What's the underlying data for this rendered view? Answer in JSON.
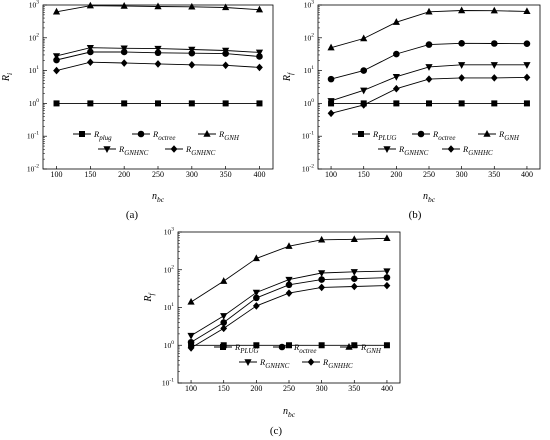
{
  "chart_data": [
    {
      "type": "line",
      "panel_label": "(a)",
      "xlabel_main": "n",
      "xlabel_sub": "bc",
      "ylabel_main": "R",
      "ylabel_sub": "i",
      "x": [
        100,
        150,
        200,
        250,
        300,
        350,
        400
      ],
      "xlim": [
        80,
        420
      ],
      "x_ticks": [
        "100",
        "150",
        "200",
        "250",
        "300",
        "350",
        "400"
      ],
      "y_scale": "log",
      "ylim_exp": [
        -2,
        3
      ],
      "y_ticks": [
        {
          "m": "10",
          "e": "-2"
        },
        {
          "m": "10",
          "e": "-1"
        },
        {
          "m": "10",
          "e": "0"
        },
        {
          "m": "10",
          "e": "1"
        },
        {
          "m": "10",
          "e": "2"
        },
        {
          "m": "10",
          "e": "3"
        }
      ],
      "grid": false,
      "legend_position": "bottom",
      "series": [
        {
          "main": "R",
          "sub": "plug",
          "marker": "square",
          "values": [
            1,
            1,
            1,
            1,
            1,
            1,
            1
          ]
        },
        {
          "main": "R",
          "sub": "octree",
          "marker": "circle",
          "values": [
            21,
            37,
            37,
            35,
            34,
            33,
            27
          ]
        },
        {
          "main": "R",
          "sub": "GNH",
          "marker": "triangle-up",
          "values": [
            620,
            950,
            930,
            900,
            880,
            840,
            720
          ]
        },
        {
          "main": "R",
          "sub": "GNHNC",
          "marker": "triangle-down",
          "values": [
            28,
            50,
            48,
            47,
            44,
            41,
            36
          ]
        },
        {
          "main": "R",
          "sub": "GNHNC",
          "marker": "diamond",
          "values": [
            10,
            18,
            17,
            16,
            15,
            14.5,
            12.5
          ]
        }
      ]
    },
    {
      "type": "line",
      "panel_label": "(b)",
      "xlabel_main": "n",
      "xlabel_sub": "bc",
      "ylabel_main": "R",
      "ylabel_sub": "f",
      "x": [
        100,
        150,
        200,
        250,
        300,
        350,
        400
      ],
      "xlim": [
        80,
        420
      ],
      "x_ticks": [
        "100",
        "150",
        "200",
        "250",
        "300",
        "350",
        "400"
      ],
      "y_scale": "log",
      "ylim_exp": [
        -2,
        3
      ],
      "y_ticks": [
        {
          "m": "10",
          "e": "-2"
        },
        {
          "m": "10",
          "e": "-1"
        },
        {
          "m": "10",
          "e": "0"
        },
        {
          "m": "10",
          "e": "1"
        },
        {
          "m": "10",
          "e": "2"
        },
        {
          "m": "10",
          "e": "3"
        }
      ],
      "grid": false,
      "legend_position": "bottom",
      "series": [
        {
          "main": "R",
          "sub": "PLUG",
          "marker": "square",
          "values": [
            1,
            1,
            1,
            1,
            1,
            1,
            1
          ]
        },
        {
          "main": "R",
          "sub": "octree",
          "marker": "circle",
          "values": [
            5.5,
            10,
            32,
            62,
            68,
            67,
            66
          ]
        },
        {
          "main": "R",
          "sub": "GNH",
          "marker": "triangle-up",
          "values": [
            50,
            95,
            300,
            620,
            680,
            670,
            640
          ]
        },
        {
          "main": "R",
          "sub": "GNHNC",
          "marker": "triangle-down",
          "values": [
            1.2,
            2.5,
            6.5,
            13,
            15,
            15,
            15
          ]
        },
        {
          "main": "R",
          "sub": "GNHHC",
          "marker": "diamond",
          "values": [
            0.5,
            0.9,
            2.8,
            5.5,
            6,
            6,
            6.2
          ]
        }
      ]
    },
    {
      "type": "line",
      "panel_label": "(c)",
      "xlabel_main": "n",
      "xlabel_sub": "bc",
      "ylabel_main": "R",
      "ylabel_sub": "f",
      "x": [
        100,
        150,
        200,
        250,
        300,
        350,
        400
      ],
      "xlim": [
        80,
        420
      ],
      "x_ticks": [
        "100",
        "150",
        "200",
        "250",
        "300",
        "350",
        "400"
      ],
      "y_scale": "log",
      "ylim_exp": [
        -1,
        3
      ],
      "y_ticks": [
        {
          "m": "10",
          "e": "-1"
        },
        {
          "m": "10",
          "e": "0"
        },
        {
          "m": "10",
          "e": "1"
        },
        {
          "m": "10",
          "e": "2"
        },
        {
          "m": "10",
          "e": "3"
        }
      ],
      "grid": false,
      "legend_position": "bottom",
      "series": [
        {
          "main": "R",
          "sub": "PLUG",
          "marker": "square",
          "values": [
            1,
            1,
            1,
            1,
            1,
            1,
            1
          ]
        },
        {
          "main": "R",
          "sub": "octree",
          "marker": "circle",
          "values": [
            1.2,
            4,
            18,
            40,
            55,
            58,
            62
          ]
        },
        {
          "main": "R",
          "sub": "GNH",
          "marker": "triangle-up",
          "values": [
            14,
            50,
            200,
            420,
            620,
            640,
            680
          ]
        },
        {
          "main": "R",
          "sub": "GNHNC",
          "marker": "triangle-down",
          "values": [
            1.8,
            6,
            25,
            55,
            82,
            88,
            92
          ]
        },
        {
          "main": "R",
          "sub": "GNHHC",
          "marker": "diamond",
          "values": [
            0.85,
            2.8,
            11,
            24,
            34,
            36,
            38
          ]
        }
      ]
    }
  ]
}
